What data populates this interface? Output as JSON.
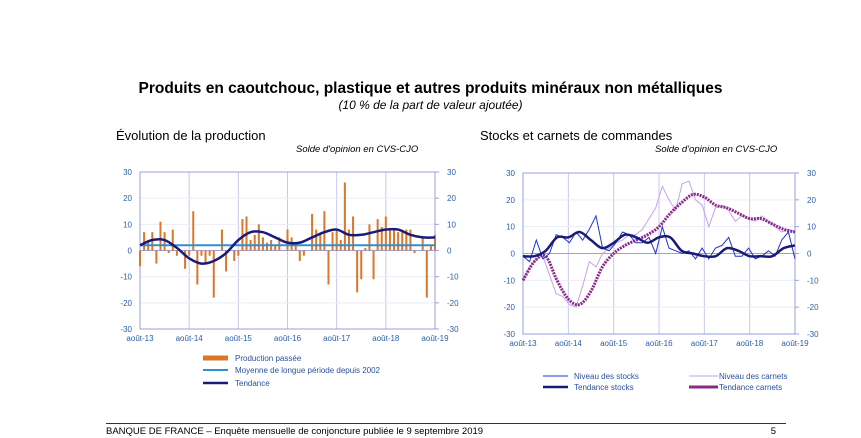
{
  "header": {
    "title": "Produits en caoutchouc, plastique et autres produits minéraux non métalliques",
    "subtitle": "(10 % de la part de valeur ajoutée)"
  },
  "footer": {
    "text": "BANQUE DE FRANCE –   Enquête mensuelle de conjoncture publiée le 9 septembre 2019",
    "page": "5"
  },
  "colors": {
    "bars": "#d9772a",
    "mean": "#2f8fd0",
    "trend": "#1a1a7a",
    "stocks": "#2233cc",
    "carnets_raw": "#c9a0e8",
    "carnets_trend": "#8a2a8a",
    "grid": "#c8c8f0",
    "axis": "#9aa0e0"
  },
  "chart_data": [
    {
      "type": "bar",
      "title": "Évolution de la production",
      "unit_label": "Solde d'opinion en CVS-CJO",
      "ylim": [
        -30,
        30
      ],
      "yticks": [
        "30",
        "20",
        "10",
        "0",
        "-10",
        "-20",
        "-30"
      ],
      "xticks": [
        "août-13",
        "août-14",
        "août-15",
        "août-16",
        "août-17",
        "août-18",
        "août-19"
      ],
      "x_range": "août-13 to août-19 (monthly)",
      "series": [
        {
          "name": "Production passée",
          "kind": "bar",
          "values": [
            -6,
            7,
            4,
            7,
            -5,
            11,
            7,
            -1,
            8,
            -2,
            0,
            -7,
            -2,
            15,
            -13,
            -2,
            -5,
            -2,
            -18,
            0,
            8,
            -8,
            0,
            -4,
            -2,
            12,
            13,
            4,
            6,
            10,
            5,
            3,
            4,
            2,
            5,
            0,
            8,
            5,
            3,
            -4,
            -2,
            0,
            14,
            8,
            6,
            15,
            -13,
            7,
            8,
            4,
            26,
            8,
            13,
            -16,
            -11,
            1,
            10,
            -11,
            12,
            9,
            13,
            8,
            8,
            7,
            8,
            8,
            8,
            -1,
            0,
            5,
            -18,
            2,
            6
          ]
        },
        {
          "name": "Moyenne de longue période depuis 2002",
          "kind": "line",
          "value": 2
        },
        {
          "name": "Tendance",
          "kind": "line",
          "values": [
            2,
            4,
            4,
            1,
            -3,
            -5,
            -4,
            -1,
            4,
            7,
            7,
            5,
            3,
            3,
            5,
            7,
            8,
            6,
            6,
            7,
            8,
            8,
            6,
            5,
            5
          ]
        }
      ]
    },
    {
      "type": "line",
      "title": "Stocks et carnets de commandes",
      "unit_label": "Solde d'opinion en CVS-CJO",
      "ylim": [
        -30,
        30
      ],
      "yticks": [
        "30",
        "20",
        "10",
        "0",
        "-10",
        "-20",
        "-30"
      ],
      "xticks": [
        "août-13",
        "août-14",
        "août-15",
        "août-16",
        "août-17",
        "août-18",
        "août-19"
      ],
      "series": [
        {
          "name": "Niveau des stocks",
          "values": [
            -1,
            -3,
            5,
            -2,
            0,
            7,
            6,
            4,
            8,
            5,
            9,
            14,
            2,
            1,
            4,
            8,
            7,
            4,
            4,
            6,
            0,
            10,
            2,
            1,
            0,
            1,
            -2,
            2,
            -2,
            2,
            3,
            6,
            -1,
            -1,
            2,
            -2,
            -1,
            1,
            -1,
            5,
            8,
            -2
          ]
        },
        {
          "name": "Tendance stocks",
          "values": [
            -1,
            -1,
            1,
            6,
            6,
            8,
            5,
            2,
            4,
            7,
            6,
            4,
            6,
            6,
            1,
            0,
            -1,
            -1,
            2,
            1,
            -1,
            -1,
            -1,
            2,
            3
          ]
        },
        {
          "name": "Niveau des carnets",
          "values": [
            -10,
            -5,
            -2,
            -1,
            -8,
            -15,
            -16,
            -19,
            -20,
            -12,
            -3,
            -5,
            0,
            2,
            4,
            5,
            7,
            7,
            9,
            13,
            17,
            25,
            20,
            16,
            26,
            27,
            20,
            18,
            10,
            17,
            18,
            16,
            12,
            14,
            13,
            12,
            14,
            12,
            10,
            8,
            9,
            8
          ]
        },
        {
          "name": "Tendance carnets",
          "values": [
            -10,
            -3,
            -1,
            -10,
            -17,
            -19,
            -14,
            -5,
            0,
            3,
            5,
            7,
            10,
            15,
            19,
            22,
            21,
            18,
            17,
            15,
            13,
            13,
            11,
            9,
            8
          ]
        }
      ]
    }
  ]
}
